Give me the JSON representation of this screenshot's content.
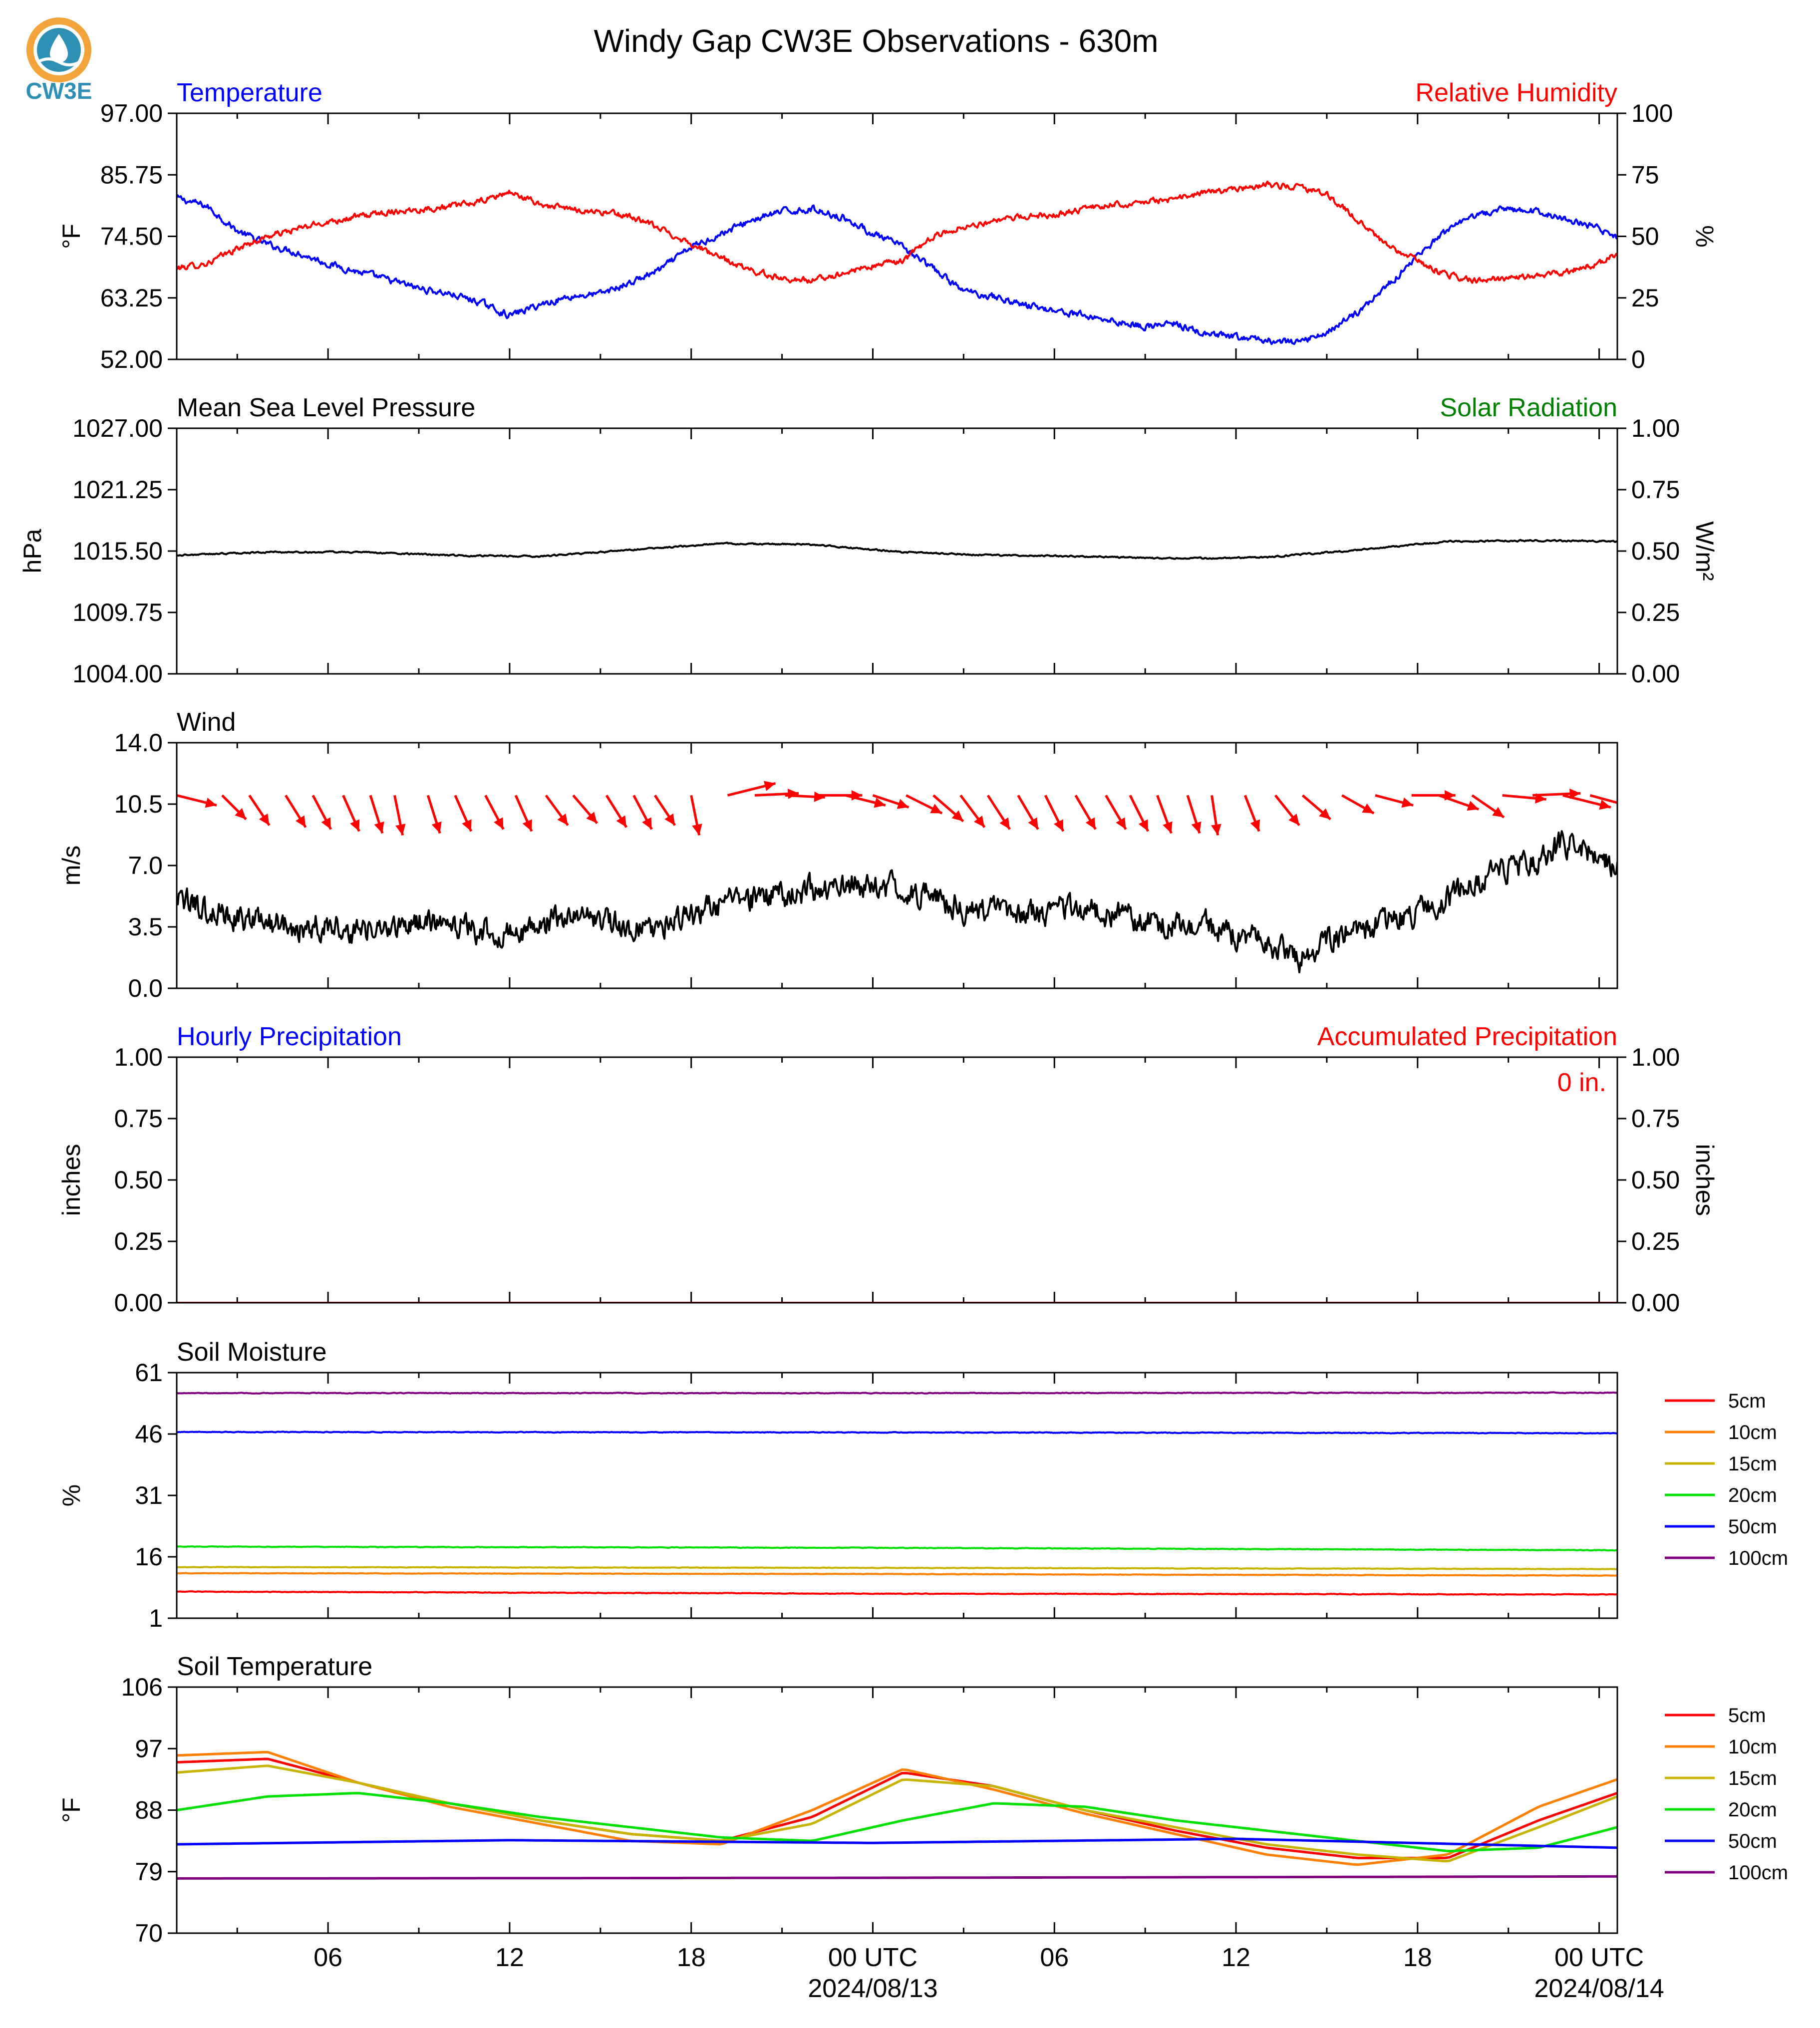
{
  "title": "Windy Gap CW3E Observations - 630m",
  "logo": {
    "text": "CW3E",
    "color": "#2e8fb5",
    "accent": "#f2a33a"
  },
  "time_axis": {
    "range_hours": [
      -23,
      24.6
    ],
    "tick_hours": [
      -18,
      -12,
      -6,
      0,
      6,
      12,
      18,
      24
    ],
    "tick_labels": [
      "06",
      "12",
      "18",
      "00 UTC",
      "06",
      "12",
      "18",
      "00 UTC"
    ],
    "date_labels": [
      {
        "hour": 0,
        "text": "2024/08/13"
      },
      {
        "hour": 24,
        "text": "2024/08/14"
      }
    ]
  },
  "chart_data": [
    {
      "type": "line",
      "panel": "temp_rh",
      "left_title": "Temperature",
      "right_title": "Relative Humidity",
      "left_title_color": "#0000ff",
      "right_title_color": "#ff0000",
      "ylabel": "°F",
      "ylabel_right": "%",
      "ylim": [
        52,
        97
      ],
      "ylim_right": [
        0,
        100
      ],
      "yticks": [
        "52.00",
        "63.25",
        "74.50",
        "85.75",
        "97.00"
      ],
      "yticks_right": [
        "0",
        "25",
        "50",
        "75",
        "100"
      ],
      "series": [
        {
          "name": "Temperature",
          "color": "#0000ff",
          "axis": "left",
          "x": [
            -23,
            -22,
            -21,
            -20,
            -19,
            -18,
            -17,
            -16,
            -15,
            -14,
            -13,
            -12,
            -11,
            -10,
            -9,
            -8,
            -7,
            -6,
            -5,
            -4,
            -3,
            -2,
            -1,
            0,
            1,
            2,
            3,
            4,
            5,
            6,
            7,
            8,
            9,
            10,
            11,
            12,
            13,
            14,
            15,
            16,
            17,
            18,
            19,
            20,
            21,
            22,
            23,
            24,
            24.6
          ],
          "y": [
            81.5,
            80,
            75.5,
            73,
            71.5,
            69.5,
            68,
            66.5,
            65,
            64,
            62.5,
            60,
            62,
            63.5,
            64,
            66,
            68.5,
            72.5,
            75,
            77.5,
            79,
            79.5,
            78,
            75,
            72.5,
            68.5,
            64.5,
            63.5,
            62,
            61,
            60,
            59,
            58,
            58.5,
            56.5,
            56,
            55.5,
            55,
            57,
            60.5,
            65.5,
            71,
            75.5,
            78.5,
            79.5,
            79,
            77.5,
            76,
            74
          ]
        },
        {
          "name": "Relative Humidity",
          "color": "#ff0000",
          "axis": "right",
          "x": [
            -23,
            -22,
            -21,
            -20,
            -19,
            -18,
            -17,
            -16,
            -15,
            -14,
            -13,
            -12,
            -11,
            -10,
            -9,
            -8,
            -7,
            -6,
            -5,
            -4,
            -3,
            -2,
            -1,
            0,
            1,
            2,
            3,
            4,
            5,
            6,
            7,
            8,
            9,
            10,
            11,
            12,
            13,
            14,
            15,
            16,
            17,
            18,
            19,
            20,
            21,
            22,
            23,
            24,
            24.6
          ],
          "y": [
            37,
            39,
            45,
            50,
            53,
            56,
            58,
            60,
            61,
            62,
            64,
            68,
            63,
            61,
            60,
            58,
            53,
            47,
            41,
            36,
            33,
            32,
            35,
            38,
            40,
            50,
            54,
            56,
            58,
            59,
            61,
            63,
            64,
            65,
            68,
            69,
            71,
            70,
            67,
            57,
            46,
            40,
            34,
            32,
            33,
            34,
            36,
            39,
            43
          ]
        }
      ]
    },
    {
      "type": "line",
      "panel": "pressure",
      "left_title": "Mean Sea Level Pressure",
      "right_title": "Solar Radiation",
      "left_title_color": "#000000",
      "right_title_color": "#008000",
      "ylabel": "hPa",
      "ylabel_right": "W/m²",
      "ylim": [
        1004,
        1027
      ],
      "ylim_right": [
        0,
        1
      ],
      "yticks": [
        "1004.00",
        "1009.75",
        "1015.50",
        "1021.25",
        "1027.00"
      ],
      "yticks_right": [
        "0.00",
        "0.25",
        "0.50",
        "0.75",
        "1.00"
      ],
      "series": [
        {
          "name": "Mean Sea Level Pressure",
          "color": "#000000",
          "axis": "left",
          "x": [
            -23,
            -20,
            -17,
            -14,
            -11,
            -8,
            -5,
            -2,
            1,
            4,
            7,
            10,
            13,
            16,
            19,
            22,
            24.6
          ],
          "y": [
            1015.1,
            1015.4,
            1015.4,
            1015.1,
            1015.0,
            1015.6,
            1016.2,
            1016.1,
            1015.4,
            1015.1,
            1015.0,
            1014.8,
            1014.9,
            1015.6,
            1016.4,
            1016.5,
            1016.4
          ]
        }
      ]
    },
    {
      "type": "line",
      "panel": "wind",
      "left_title": "Wind",
      "right_title": "",
      "left_title_color": "#000000",
      "ylabel": "m/s",
      "ylim": [
        0,
        14
      ],
      "yticks": [
        "0.0",
        "3.5",
        "7.0",
        "10.5",
        "14.0"
      ],
      "series": [
        {
          "name": "Wind Speed",
          "color": "#000000",
          "axis": "left",
          "x": [
            -23,
            -22,
            -21,
            -20,
            -19,
            -18,
            -17,
            -16,
            -15,
            -14,
            -13,
            -12,
            -11,
            -10,
            -9,
            -8,
            -7,
            -6,
            -5,
            -4,
            -3,
            -2,
            -1,
            0,
            1,
            2,
            3,
            4,
            5,
            6,
            7,
            8,
            9,
            10,
            11,
            12,
            13,
            14,
            15,
            16,
            17,
            18,
            19,
            20,
            21,
            22,
            23,
            24,
            24.6
          ],
          "y": [
            5.0,
            4.5,
            4.0,
            3.8,
            3.5,
            3.7,
            3.2,
            3.4,
            3.8,
            3.6,
            3.4,
            3.0,
            3.6,
            4.2,
            3.8,
            3.5,
            3.6,
            4.0,
            4.8,
            5.0,
            5.3,
            5.6,
            5.9,
            6.0,
            5.6,
            5.2,
            4.6,
            4.4,
            4.3,
            4.5,
            4.6,
            4.2,
            3.8,
            3.6,
            3.5,
            3.0,
            2.8,
            1.5,
            2.8,
            3.4,
            3.8,
            4.3,
            5.2,
            6.0,
            6.8,
            7.4,
            8.4,
            7.6,
            7.0
          ]
        }
      ],
      "barbs": {
        "color": "#ff0000",
        "x": [
          -23,
          -21.5,
          -20.6,
          -19.4,
          -18.5,
          -17.5,
          -16.6,
          -15.8,
          -14.7,
          -13.8,
          -12.8,
          -11.8,
          -10.8,
          -9.9,
          -8.8,
          -7.9,
          -7.2,
          -6,
          -4.8,
          -3.9,
          -2.9,
          -1.8,
          -0.9,
          0,
          1.1,
          2,
          2.9,
          3.8,
          4.8,
          5.7,
          6.7,
          7.7,
          8.5,
          9.4,
          10.4,
          11.2,
          12.3,
          13.3,
          14.2,
          15.5,
          16.6,
          17.8,
          18.7,
          19.8,
          20.8,
          21.8,
          22.8,
          23.7,
          24.6
        ],
        "u": [
          1.0,
          0.6,
          0.5,
          0.5,
          0.45,
          0.4,
          0.3,
          0.2,
          0.3,
          0.4,
          0.45,
          0.4,
          0.55,
          0.6,
          0.5,
          0.45,
          0.5,
          0.2,
          1.2,
          1.1,
          1.0,
          1.1,
          1.0,
          0.9,
          0.9,
          0.75,
          0.6,
          0.55,
          0.5,
          0.45,
          0.5,
          0.5,
          0.45,
          0.35,
          0.3,
          0.15,
          0.35,
          0.6,
          0.7,
          0.8,
          0.95,
          1.1,
          1.0,
          0.8,
          1.1,
          1.2,
          1.2,
          1.1,
          1.1
        ],
        "v": [
          -0.25,
          -0.6,
          -0.75,
          -0.8,
          -0.85,
          -0.9,
          -0.95,
          -1.0,
          -0.95,
          -0.9,
          -0.85,
          -0.9,
          -0.75,
          -0.7,
          -0.8,
          -0.85,
          -0.75,
          -1.0,
          0.3,
          0.05,
          -0.05,
          0.0,
          -0.25,
          -0.3,
          -0.45,
          -0.65,
          -0.8,
          -0.85,
          -0.85,
          -0.9,
          -0.85,
          -0.85,
          -0.9,
          -0.95,
          -0.95,
          -1.0,
          -0.9,
          -0.75,
          -0.6,
          -0.45,
          -0.25,
          0.0,
          -0.35,
          -0.55,
          -0.1,
          0.05,
          -0.3,
          -0.3,
          -0.3
        ]
      }
    },
    {
      "type": "line",
      "panel": "precip",
      "left_title": "Hourly Precipitation",
      "right_title": "Accumulated Precipitation",
      "left_title_color": "#0000ff",
      "right_title_color": "#ff0000",
      "ylabel": "inches",
      "ylabel_right": "inches",
      "ylim": [
        0,
        1
      ],
      "ylim_right": [
        0,
        1
      ],
      "yticks": [
        "0.00",
        "0.25",
        "0.50",
        "0.75",
        "1.00"
      ],
      "yticks_right": [
        "0.00",
        "0.25",
        "0.50",
        "0.75",
        "1.00"
      ],
      "annotation": "0 in.",
      "series": [
        {
          "name": "Hourly Precipitation",
          "color": "#0000ff",
          "axis": "left",
          "x": [
            -23,
            24.6
          ],
          "y": [
            0,
            0
          ]
        },
        {
          "name": "Accumulated Precipitation",
          "color": "#ff0000",
          "axis": "right",
          "x": [
            -23,
            24.6
          ],
          "y": [
            0,
            0
          ]
        }
      ]
    },
    {
      "type": "line",
      "panel": "soil_moisture",
      "left_title": "Soil Moisture",
      "right_title": "",
      "left_title_color": "#000000",
      "ylabel": "%",
      "ylim": [
        1,
        61
      ],
      "yticks": [
        "1",
        "16",
        "31",
        "46",
        "61"
      ],
      "legend": "right",
      "series": [
        {
          "name": "5cm",
          "color": "#ff0000",
          "axis": "left",
          "x": [
            -23,
            0,
            24.6
          ],
          "y": [
            7.5,
            7.0,
            6.8
          ]
        },
        {
          "name": "10cm",
          "color": "#ff8000",
          "axis": "left",
          "x": [
            -23,
            0,
            24.6
          ],
          "y": [
            12.0,
            11.8,
            11.4
          ]
        },
        {
          "name": "15cm",
          "color": "#c8b400",
          "axis": "left",
          "x": [
            -23,
            0,
            24.6
          ],
          "y": [
            13.5,
            13.3,
            13.0
          ]
        },
        {
          "name": "20cm",
          "color": "#00e000",
          "axis": "left",
          "x": [
            -23,
            0,
            24.6
          ],
          "y": [
            18.5,
            18.2,
            17.6
          ]
        },
        {
          "name": "50cm",
          "color": "#0000ff",
          "axis": "left",
          "x": [
            -23,
            0,
            24.6
          ],
          "y": [
            46.5,
            46.4,
            46.2
          ]
        },
        {
          "name": "100cm",
          "color": "#800080",
          "axis": "left",
          "x": [
            -23,
            0,
            24.6
          ],
          "y": [
            56.0,
            56.0,
            56.1
          ]
        }
      ]
    },
    {
      "type": "line",
      "panel": "soil_temp",
      "left_title": "Soil Temperature",
      "right_title": "",
      "left_title_color": "#000000",
      "ylabel": "°F",
      "ylim": [
        70,
        106
      ],
      "yticks": [
        "70",
        "79",
        "88",
        "97",
        "106"
      ],
      "legend": "right",
      "series": [
        {
          "name": "5cm",
          "color": "#ff0000",
          "axis": "left",
          "x": [
            -23,
            -20,
            -17,
            -14,
            -11,
            -8,
            -5,
            -2,
            1,
            4,
            7,
            10,
            13,
            16,
            19,
            22,
            24.6
          ],
          "y": [
            95.0,
            95.5,
            92.0,
            89.0,
            86.5,
            84.5,
            83.5,
            87.0,
            93.5,
            91.5,
            88.0,
            85.0,
            82.5,
            81.0,
            81.0,
            86.5,
            90.5
          ]
        },
        {
          "name": "10cm",
          "color": "#ff8000",
          "axis": "left",
          "x": [
            -23,
            -20,
            -17,
            -14,
            -11,
            -8,
            -5,
            -2,
            1,
            4,
            7,
            10,
            13,
            16,
            19,
            22,
            24.6
          ],
          "y": [
            96.0,
            96.5,
            92.0,
            88.5,
            86.0,
            83.5,
            83.0,
            88.0,
            94.0,
            91.0,
            87.5,
            84.5,
            81.5,
            80.0,
            81.5,
            88.5,
            92.5
          ]
        },
        {
          "name": "15cm",
          "color": "#c8b400",
          "axis": "left",
          "x": [
            -23,
            -20,
            -17,
            -14,
            -11,
            -8,
            -5,
            -2,
            1,
            4,
            7,
            10,
            13,
            16,
            19,
            22,
            24.6
          ],
          "y": [
            93.5,
            94.5,
            92.0,
            89.0,
            86.5,
            84.5,
            83.5,
            86.0,
            92.5,
            91.5,
            88.0,
            85.5,
            83.0,
            81.5,
            80.5,
            85.5,
            90.0
          ]
        },
        {
          "name": "20cm",
          "color": "#00e000",
          "axis": "left",
          "x": [
            -23,
            -20,
            -17,
            -14,
            -11,
            -8,
            -5,
            -2,
            1,
            4,
            7,
            10,
            13,
            16,
            19,
            22,
            24.6
          ],
          "y": [
            88.0,
            90.0,
            90.5,
            89.0,
            87.0,
            85.5,
            84.0,
            83.5,
            86.5,
            89.0,
            88.5,
            86.5,
            85.0,
            83.5,
            82.0,
            82.5,
            85.5
          ]
        },
        {
          "name": "50cm",
          "color": "#0000ff",
          "axis": "left",
          "x": [
            -23,
            -12,
            0,
            12,
            24.6
          ],
          "y": [
            83.0,
            83.6,
            83.2,
            83.8,
            82.5
          ]
        },
        {
          "name": "100cm",
          "color": "#800080",
          "axis": "left",
          "x": [
            -23,
            0,
            24.6
          ],
          "y": [
            78.0,
            78.1,
            78.3
          ]
        }
      ]
    }
  ]
}
